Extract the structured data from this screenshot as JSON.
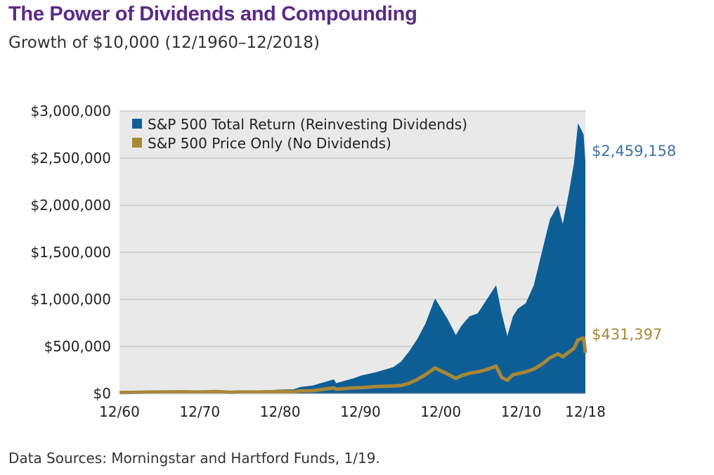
{
  "title": "The Power of Dividends and Compounding",
  "subtitle": "Growth of $10,000 (12/1960–12/2018)",
  "source": "Data Sources: Morningstar and Hartford Funds, 1/19.",
  "colors": {
    "total_return": "#0e5e96",
    "price_only": "#a88736",
    "title": "#5b2a86",
    "total_label": "#3f73a8"
  },
  "chart_data": {
    "type": "area",
    "title": "The Power of Dividends and Compounding",
    "subtitle": "Growth of $10,000 (12/1960–12/2018)",
    "xlabel": "",
    "ylabel": "",
    "ylim": [
      0,
      3000000
    ],
    "xlim": [
      1960.92,
      2018.92
    ],
    "grid": true,
    "legend_position": "top-left",
    "y_ticks": [
      {
        "value": 0,
        "label": "$0"
      },
      {
        "value": 500000,
        "label": "$500,000"
      },
      {
        "value": 1000000,
        "label": "$1,000,000"
      },
      {
        "value": 1500000,
        "label": "$1,500,000"
      },
      {
        "value": 2000000,
        "label": "$2,000,000"
      },
      {
        "value": 2500000,
        "label": "$2,500,000"
      },
      {
        "value": 3000000,
        "label": "$3,000,000"
      }
    ],
    "x_ticks": [
      {
        "value": 1960.92,
        "label": "12/60"
      },
      {
        "value": 1970.92,
        "label": "12/70"
      },
      {
        "value": 1980.92,
        "label": "12/80"
      },
      {
        "value": 1990.92,
        "label": "12/90"
      },
      {
        "value": 2000.92,
        "label": "12/00"
      },
      {
        "value": 2010.92,
        "label": "12/10"
      },
      {
        "value": 2018.92,
        "label": "12/18"
      }
    ],
    "series": [
      {
        "name": "S&P 500 Total Return (Reinvesting Dividends)",
        "style": "area",
        "end_label": "$2,459,158",
        "x": [
          1960.92,
          1965,
          1968.9,
          1970.5,
          1972.9,
          1974.8,
          1976,
          1978,
          1980.9,
          1982.6,
          1983.5,
          1985,
          1987.6,
          1987.9,
          1990,
          1991,
          1993,
          1995,
          1996,
          1997,
          1998,
          1999,
          2000.2,
          2000.7,
          2001.7,
          2002.8,
          2003.5,
          2004.5,
          2005.5,
          2006.5,
          2007.8,
          2008.5,
          2009.2,
          2009.9,
          2010.5,
          2011.5,
          2012.5,
          2013.5,
          2014.5,
          2015.5,
          2016.1,
          2016.9,
          2017.5,
          2018.0,
          2018.7,
          2018.92
        ],
        "y": [
          10000,
          17000,
          25000,
          21000,
          28000,
          17000,
          26000,
          26000,
          42000,
          45000,
          70000,
          85000,
          150000,
          110000,
          160000,
          190000,
          230000,
          280000,
          340000,
          450000,
          580000,
          740000,
          1010000,
          940000,
          800000,
          620000,
          720000,
          820000,
          850000,
          980000,
          1150000,
          850000,
          610000,
          820000,
          900000,
          960000,
          1150000,
          1500000,
          1850000,
          2000000,
          1800000,
          2150000,
          2450000,
          2870000,
          2750000,
          2459158
        ]
      },
      {
        "name": "S&P 500 Price Only (No Dividends)",
        "style": "line",
        "end_label": "$431,397",
        "x": [
          1960.92,
          1965,
          1968.9,
          1970.5,
          1972.9,
          1974.8,
          1976,
          1978,
          1980.9,
          1982.6,
          1983.5,
          1985,
          1987.6,
          1987.9,
          1990,
          1991,
          1993,
          1995,
          1996,
          1997,
          1998,
          1999,
          2000.2,
          2000.7,
          2001.7,
          2002.8,
          2003.5,
          2004.5,
          2005.5,
          2006.5,
          2007.8,
          2008.5,
          2009.2,
          2009.9,
          2010.5,
          2011.5,
          2012.5,
          2013.5,
          2014.5,
          2015.5,
          2016.1,
          2016.9,
          2017.5,
          2018.0,
          2018.7,
          2018.92
        ],
        "y": [
          10000,
          15000,
          18000,
          15000,
          20000,
          12000,
          16000,
          15000,
          22000,
          20000,
          28000,
          30000,
          60000,
          45000,
          60000,
          62000,
          75000,
          80000,
          85000,
          110000,
          150000,
          200000,
          270000,
          250000,
          210000,
          160000,
          190000,
          215000,
          230000,
          250000,
          290000,
          170000,
          140000,
          200000,
          210000,
          230000,
          260000,
          310000,
          380000,
          420000,
          390000,
          440000,
          480000,
          570000,
          590000,
          431397
        ]
      }
    ]
  }
}
